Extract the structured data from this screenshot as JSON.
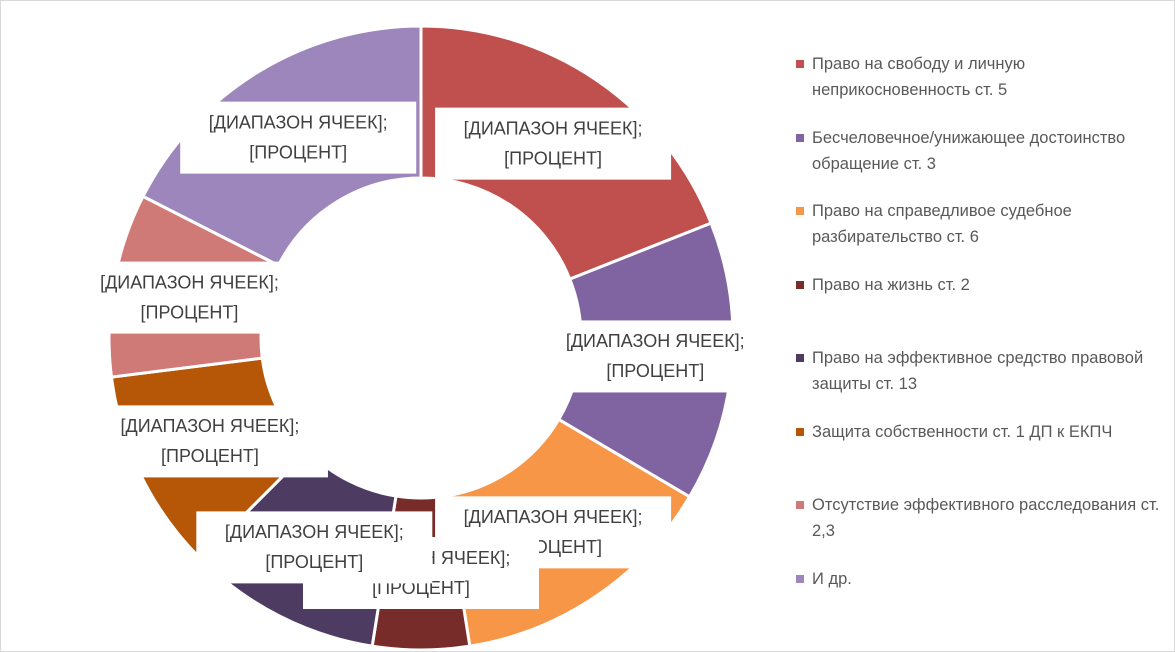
{
  "chart_data": {
    "type": "donut",
    "categories": [
      "Право на свободу и личную неприкосновенность ст. 5",
      "Бесчеловечное/унижающее достоинство обращение ст. 3",
      "Право на справедливое судебное разбирательство ст. 6",
      "Право на жизнь ст. 2",
      "Право на эффективное средство правовой защиты ст. 13",
      "Защита собственности ст. 1 ДП к ЕКПЧ",
      "Отсутствие эффективного расследования ст. 2,3",
      "И др."
    ],
    "values": [
      19,
      14.5,
      14,
      5,
      10,
      10.5,
      9.5,
      17.5
    ],
    "colors": [
      "#c0504d",
      "#8064a2",
      "#f79646",
      "#772c2a",
      "#4d3b62",
      "#b65708",
      "#d07a78",
      "#9c86bb"
    ],
    "data_labels": [
      [
        "[ДИАПАЗОН ЯЧЕЕК];",
        "[ПРОЦЕНТ]"
      ],
      [
        "[ДИАПАЗОН ЯЧЕЕК];",
        "[ПРОЦЕНТ]"
      ],
      [
        "[ДИАПАЗОН ЯЧЕЕК];",
        "[ПРОЦЕНТ]"
      ],
      [
        "[ДИАПАЗОН ЯЧЕЕК];",
        "[ПРОЦЕНТ]"
      ],
      [
        "[ДИАПАЗОН ЯЧЕЕК];",
        "[ПРОЦЕНТ]"
      ],
      [
        "[ДИАПАЗОН ЯЧЕЕК];",
        "[ПРОЦЕНТ]"
      ],
      [
        "[ДИАПАЗОН ЯЧЕЕК];",
        "[ПРОЦЕНТ]"
      ],
      [
        "[ДИАПАЗОН ЯЧЕЕК];",
        "[ПРОЦЕНТ]"
      ]
    ],
    "legend": "right"
  }
}
